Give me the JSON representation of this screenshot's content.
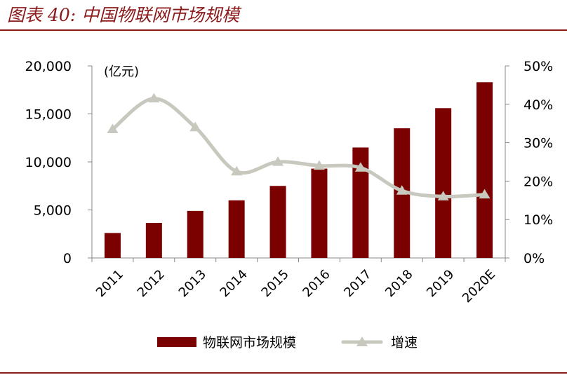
{
  "figure": {
    "title": "图表 40:  中国物联网市场规模"
  },
  "chart_data": {
    "type": "bar",
    "categories": [
      "2011",
      "2012",
      "2013",
      "2014",
      "2015",
      "2016",
      "2017",
      "2018",
      "2019",
      "2020E"
    ],
    "series": [
      {
        "name": "物联网市场规模",
        "type": "bar",
        "axis": "left",
        "color": "#7b0000",
        "values": [
          2600,
          3650,
          4900,
          6000,
          7500,
          9300,
          11500,
          13500,
          15600,
          18300
        ]
      },
      {
        "name": "增速",
        "type": "line",
        "axis": "right",
        "color": "#c8c8be",
        "values": [
          33.5,
          41.5,
          34.0,
          22.5,
          25.0,
          24.0,
          23.5,
          17.5,
          16.0,
          16.5
        ]
      }
    ],
    "y_left": {
      "unit_label": "(亿元)",
      "ylim": [
        0,
        20000
      ],
      "ticks": [
        0,
        5000,
        10000,
        15000,
        20000
      ],
      "tick_labels": [
        "0",
        "5,000",
        "10,000",
        "15,000",
        "20,000"
      ]
    },
    "y_right": {
      "ylim": [
        0,
        50
      ],
      "ticks": [
        0,
        10,
        20,
        30,
        40,
        50
      ],
      "tick_labels": [
        "0%",
        "10%",
        "20%",
        "30%",
        "40%",
        "50%"
      ]
    },
    "grid": false,
    "legend": {
      "position": "bottom",
      "items": [
        "物联网市场规模",
        "增速"
      ]
    }
  }
}
